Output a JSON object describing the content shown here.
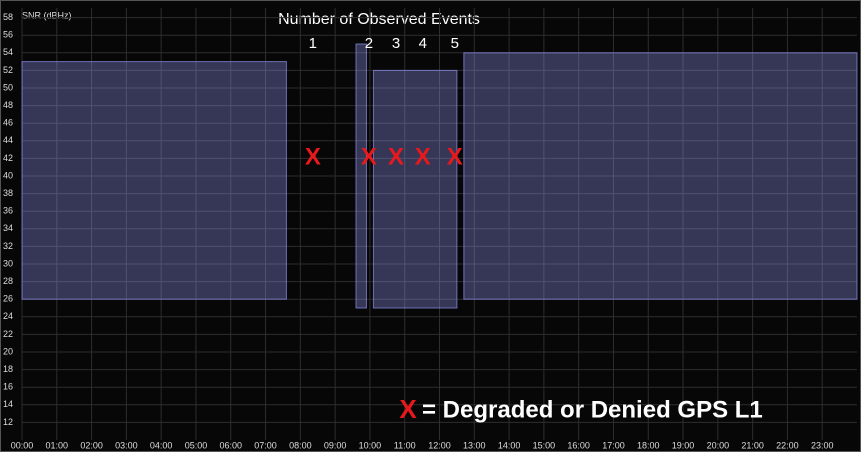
{
  "chart_data": {
    "type": "scatter",
    "title": "Number of Observed Events",
    "ylabel": "SNR (dBHz)",
    "xlim": [
      0,
      24
    ],
    "ylim": [
      10,
      60
    ],
    "xticks": [
      {
        "value": 0,
        "label": "00:00"
      },
      {
        "value": 1,
        "label": "01:00"
      },
      {
        "value": 2,
        "label": "02:00"
      },
      {
        "value": 3,
        "label": "03:00"
      },
      {
        "value": 4,
        "label": "04:00"
      },
      {
        "value": 5,
        "label": "05:00"
      },
      {
        "value": 6,
        "label": "06:00"
      },
      {
        "value": 7,
        "label": "07:00"
      },
      {
        "value": 8,
        "label": "08:00"
      },
      {
        "value": 9,
        "label": "09:00"
      },
      {
        "value": 10,
        "label": "10:00"
      },
      {
        "value": 11,
        "label": "11:00"
      },
      {
        "value": 12,
        "label": "12:00"
      },
      {
        "value": 13,
        "label": "13:00"
      },
      {
        "value": 14,
        "label": "14:00"
      },
      {
        "value": 15,
        "label": "15:00"
      },
      {
        "value": 16,
        "label": "16:00"
      },
      {
        "value": 17,
        "label": "17:00"
      },
      {
        "value": 18,
        "label": "18:00"
      },
      {
        "value": 19,
        "label": "19:00"
      },
      {
        "value": 20,
        "label": "20:00"
      },
      {
        "value": 21,
        "label": "21:00"
      },
      {
        "value": 22,
        "label": "22:00"
      },
      {
        "value": 23,
        "label": "23:00"
      }
    ],
    "yticks": [
      12,
      14,
      16,
      18,
      20,
      22,
      24,
      26,
      28,
      30,
      32,
      34,
      36,
      38,
      40,
      42,
      44,
      46,
      48,
      50,
      52,
      54,
      56,
      58
    ],
    "grid": true,
    "signal_color": "#8f92ee",
    "signal_periods": [
      {
        "start": 0,
        "end": 7.6,
        "low": 26,
        "high": 53
      },
      {
        "start": 9.6,
        "end": 9.9,
        "low": 25,
        "high": 55
      },
      {
        "start": 10.1,
        "end": 12.5,
        "low": 25,
        "high": 52
      },
      {
        "start": 12.7,
        "end": 24,
        "low": 26,
        "high": 54
      }
    ],
    "events": {
      "marker": "X",
      "color": "#e8191c",
      "x": [
        8.36,
        9.97,
        10.75,
        11.52,
        12.44
      ],
      "y": [
        42,
        42,
        42,
        42,
        42
      ],
      "labels": [
        "1",
        "2",
        "3",
        "4",
        "5"
      ]
    },
    "legend": {
      "marker": "X",
      "text": "= Degraded or Denied GPS L1"
    }
  }
}
